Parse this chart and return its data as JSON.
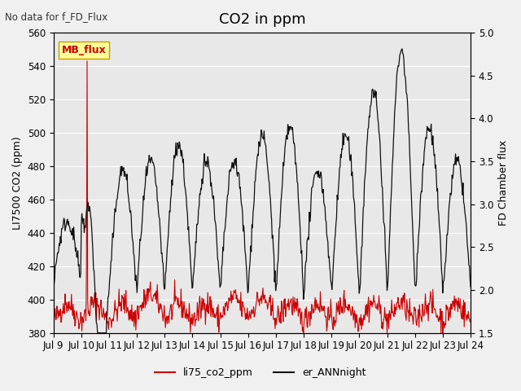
{
  "title": "CO2 in ppm",
  "top_left_text": "No data for f_FD_Flux",
  "legend_box_text": "MB_flux",
  "ylabel_left": "LI7500 CO2 (ppm)",
  "ylabel_right": "FD Chamber flux",
  "ylim_left": [
    380,
    560
  ],
  "ylim_right": [
    1.5,
    5.0
  ],
  "yticks_left": [
    380,
    400,
    420,
    440,
    460,
    480,
    500,
    520,
    540,
    560
  ],
  "yticks_right": [
    1.5,
    2.0,
    2.5,
    3.0,
    3.5,
    4.0,
    4.5,
    5.0
  ],
  "xlabel_ticks": [
    "Jul 9",
    "Jul 10",
    "Jul 11",
    "Jul 12",
    "Jul 13",
    "Jul 14",
    "Jul 15",
    "Jul 16",
    "Jul 17",
    "Jul 18",
    "Jul 19",
    "Jul 20",
    "Jul 21",
    "Jul 22",
    "Jul 23",
    "Jul 24"
  ],
  "background_color": "#f0f0f0",
  "plot_bg_color": "#e8e8e8",
  "legend_line1_color": "#cc0000",
  "legend_line1_label": "li75_co2_ppm",
  "legend_line2_color": "#111111",
  "legend_line2_label": "er_ANNnight",
  "legend_box_color": "#ffff99",
  "legend_box_border": "#cc9900",
  "title_fontsize": 13,
  "tick_fontsize": 8.5,
  "label_fontsize": 9
}
